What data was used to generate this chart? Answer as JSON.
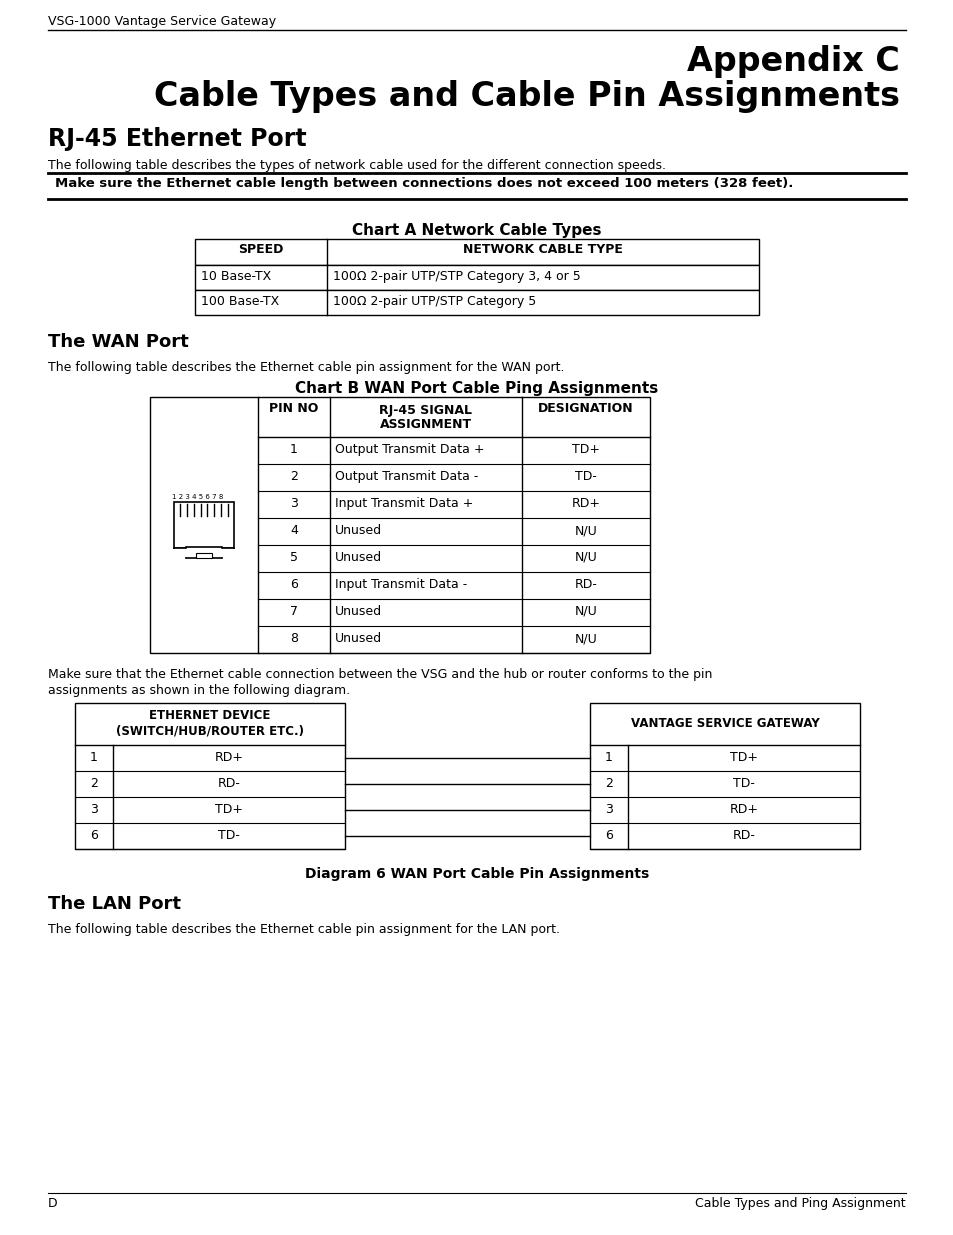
{
  "page_header": "VSG-1000 Vantage Service Gateway",
  "title_line1": "Appendix C",
  "title_line2": "Cable Types and Cable Pin Assignments",
  "section1_title": "RJ-45 Ethernet Port",
  "section1_intro": "The following table describes the types of network cable used for the different connection speeds.",
  "warning_text": "Make sure the Ethernet cable length between connections does not exceed 100 meters (328 feet).",
  "chartA_title": "Chart A Network Cable Types",
  "chartA_headers": [
    "SPEED",
    "NETWORK CABLE TYPE"
  ],
  "chartA_rows": [
    [
      "10 Base-TX",
      "100Ω 2-pair UTP/STP Category 3, 4 or 5"
    ],
    [
      "100 Base-TX",
      "100Ω 2-pair UTP/STP Category 5"
    ]
  ],
  "wan_title": "The WAN Port",
  "wan_intro": "The following table describes the Ethernet cable pin assignment for the WAN port.",
  "chartB_title": "Chart B WAN Port Cable Ping Assignments",
  "chartB_headers": [
    "PIN NO",
    "RJ-45 SIGNAL\nASSIGNMENT",
    "DESIGNATION"
  ],
  "chartB_rows": [
    [
      "1",
      "Output Transmit Data +",
      "TD+"
    ],
    [
      "2",
      "Output Transmit Data -",
      "TD-"
    ],
    [
      "3",
      "Input Transmit Data +",
      "RD+"
    ],
    [
      "4",
      "Unused",
      "N/U"
    ],
    [
      "5",
      "Unused",
      "N/U"
    ],
    [
      "6",
      "Input Transmit Data -",
      "RD-"
    ],
    [
      "7",
      "Unused",
      "N/U"
    ],
    [
      "8",
      "Unused",
      "N/U"
    ]
  ],
  "make_sure_text1": "Make sure that the Ethernet cable connection between the VSG and the hub or router conforms to the pin",
  "make_sure_text2": "assignments as shown in the following diagram.",
  "diag_left_header1": "ETHERNET DEVICE",
  "diag_left_header2": "(SWITCH/HUB/ROUTER ETC.)",
  "diag_right_header": "VANTAGE SERVICE GATEWAY",
  "diag_left_rows": [
    [
      "1",
      "RD+"
    ],
    [
      "2",
      "RD-"
    ],
    [
      "3",
      "TD+"
    ],
    [
      "6",
      "TD-"
    ]
  ],
  "diag_right_rows": [
    [
      "1",
      "TD+"
    ],
    [
      "2",
      "TD-"
    ],
    [
      "3",
      "RD+"
    ],
    [
      "6",
      "RD-"
    ]
  ],
  "diagram_caption": "Diagram 6 WAN Port Cable Pin Assignments",
  "lan_title": "The LAN Port",
  "lan_intro": "The following table describes the Ethernet cable pin assignment for the LAN port.",
  "footer_left": "D",
  "footer_right": "Cable Types and Ping Assignment"
}
